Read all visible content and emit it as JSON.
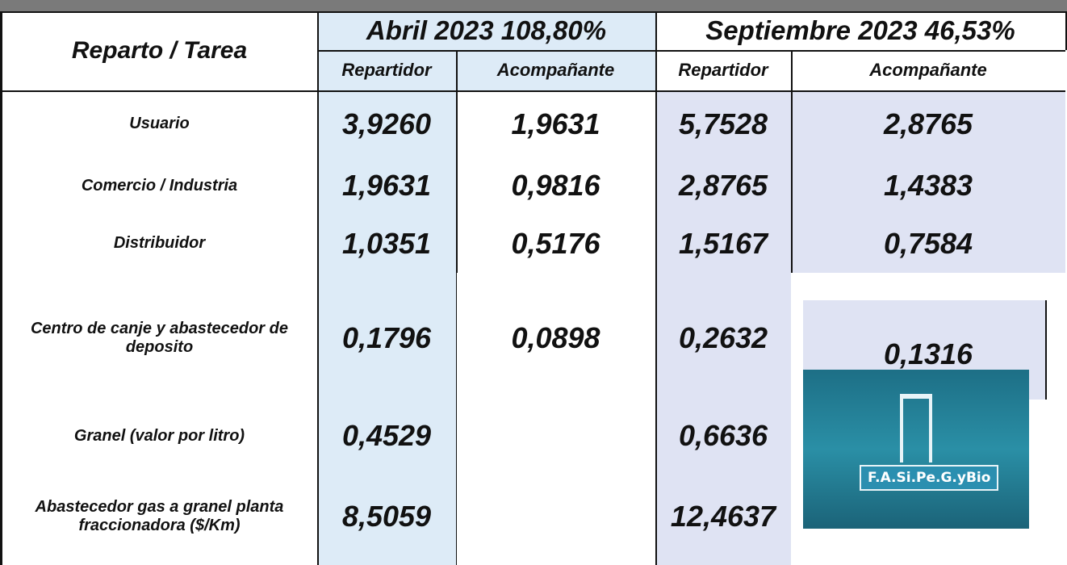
{
  "table": {
    "corner": "Reparto / Tarea",
    "groups": [
      {
        "title": "Abril 2023 108,80%",
        "subcolumns": [
          "Repartidor",
          "Acompañante"
        ]
      },
      {
        "title": "Septiembre 2023 46,53%",
        "subcolumns": [
          "Repartidor",
          "Acompañante"
        ]
      }
    ],
    "rows": [
      {
        "label": "Usuario",
        "values": [
          "3,9260",
          "1,9631",
          "5,7528",
          "2,8765"
        ]
      },
      {
        "label": "Comercio / Industria",
        "values": [
          "1,9631",
          "0,9816",
          "2,8765",
          "1,4383"
        ]
      },
      {
        "label": "Distribuidor",
        "values": [
          "1,0351",
          "0,5176",
          "1,5167",
          "0,7584"
        ]
      },
      {
        "label": "Centro de canje y abastecedor de deposito",
        "values": [
          "0,1796",
          "0,0898",
          "0,2632",
          "0,1316"
        ]
      },
      {
        "label": "Granel (valor por litro)",
        "values": [
          "0,4529",
          null,
          "0,6636",
          null
        ]
      },
      {
        "label": "Abastecedor gas a granel planta fraccionadora ($/Km)",
        "values": [
          "8,5059",
          null,
          "12,4637",
          null
        ]
      }
    ]
  },
  "logo": {
    "text": "F.A.Si.Pe.G.yBio"
  }
}
